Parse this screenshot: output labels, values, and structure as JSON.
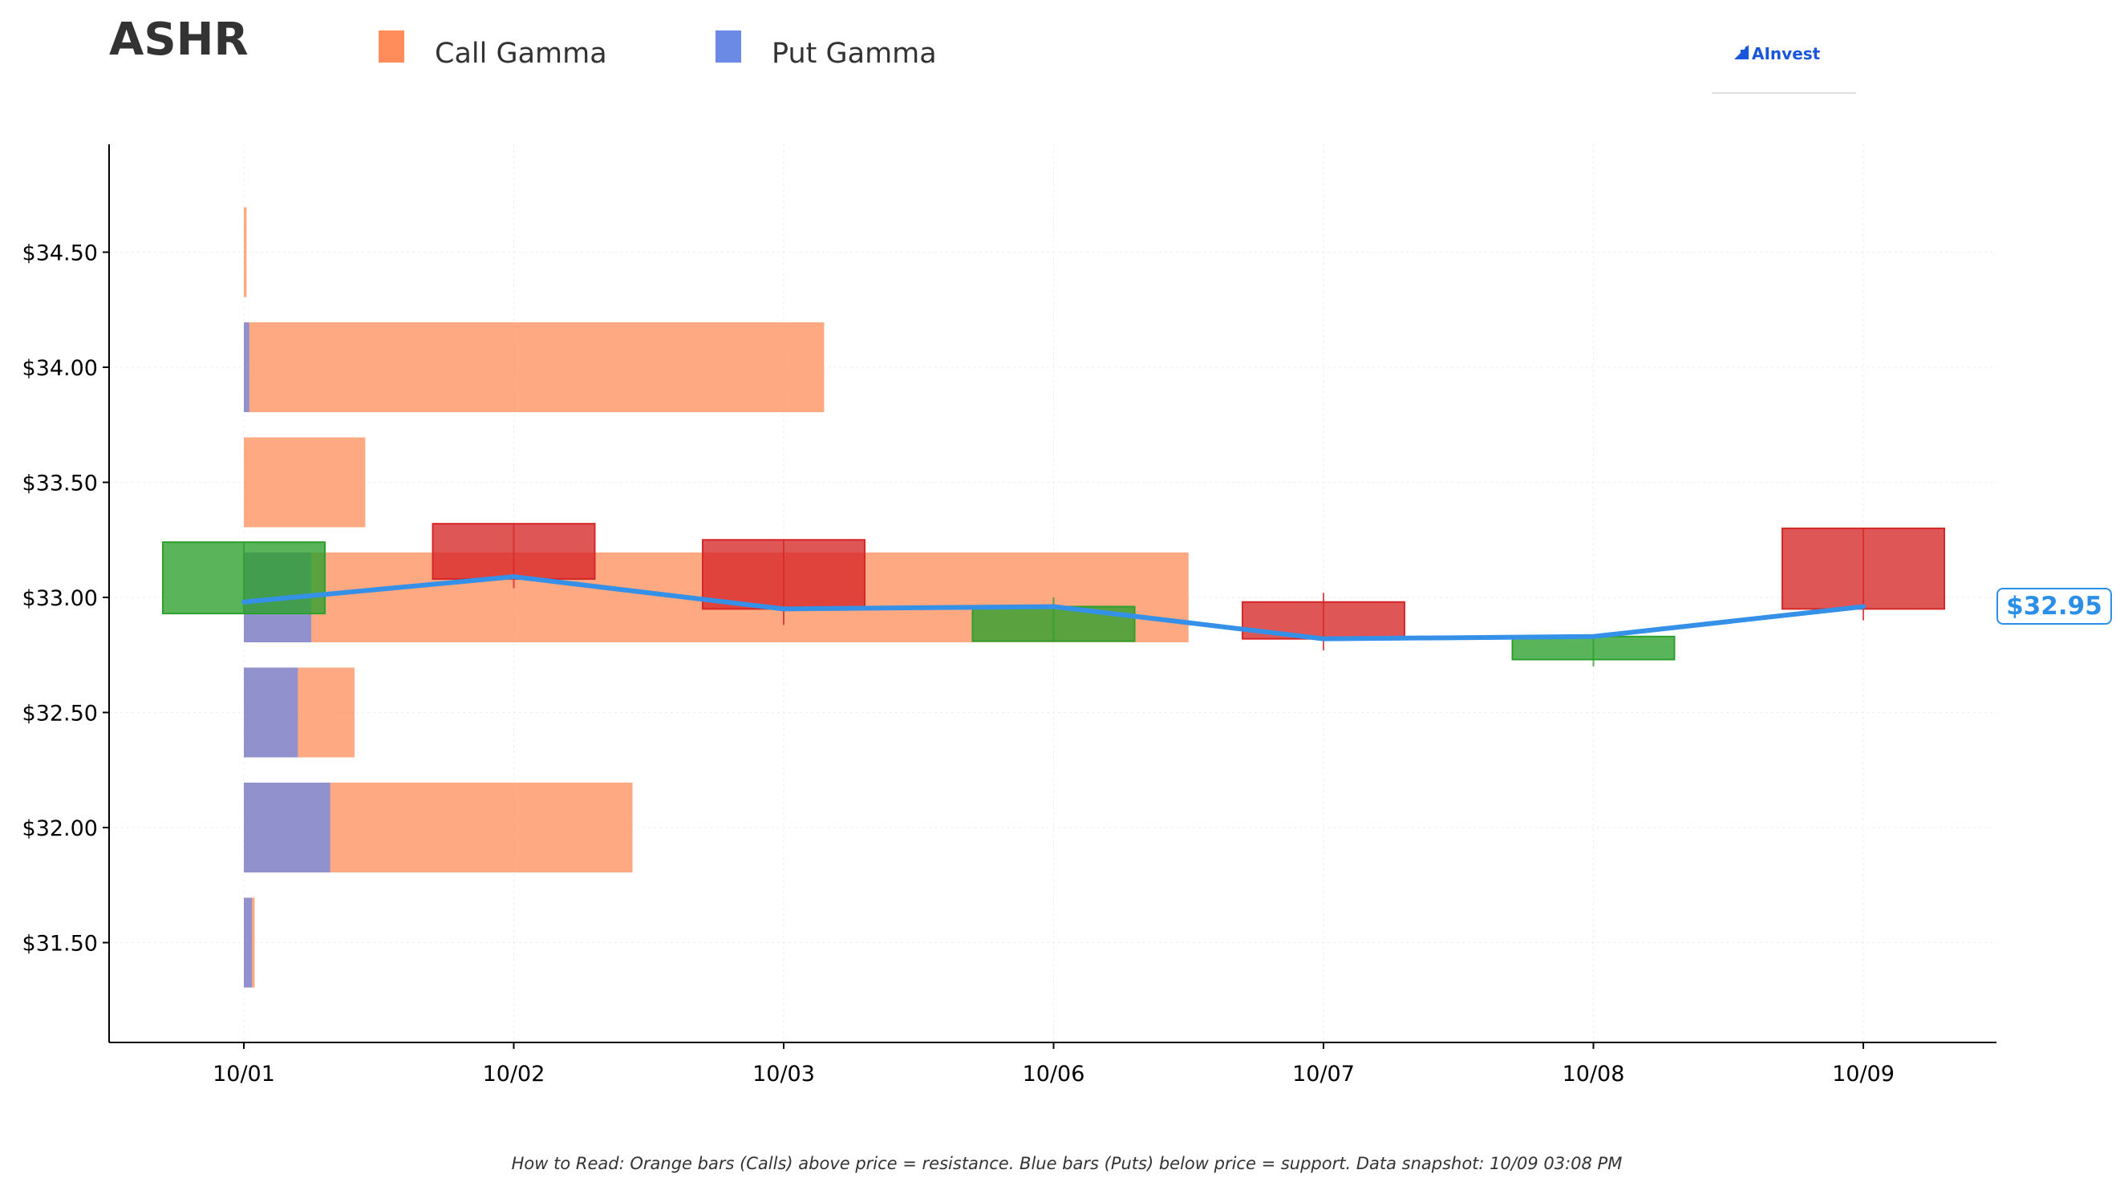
{
  "header": {
    "ticker": "ASHR",
    "logo_text": "AInvest"
  },
  "legend": [
    {
      "label": "Call Gamma",
      "color": "#ff8c5a"
    },
    {
      "label": "Put Gamma",
      "color": "#6b8ae6"
    }
  ],
  "footnote": "How to Read: Orange bars (Calls) above price = resistance. Blue bars (Puts) below price = support. Data snapshot: 10/09 03:08 PM",
  "colors": {
    "call": "#ff8c5a",
    "put": "#6b8ae6",
    "up_candle": "#2ca02c",
    "down_candle": "#d62728",
    "price_line": "#3590e8",
    "price_label": "#2b8fe8"
  },
  "chart_data": {
    "type": "bar",
    "title": "ASHR",
    "x_categories": [
      "10/01",
      "10/02",
      "10/03",
      "10/06",
      "10/07",
      "10/08",
      "10/09"
    ],
    "y_ticks": [
      "$31.50",
      "$32.00",
      "$32.50",
      "$33.00",
      "$33.50",
      "$34.00",
      "$34.50"
    ],
    "y_tick_values": [
      31.5,
      32.0,
      32.5,
      33.0,
      33.5,
      34.0,
      34.5
    ],
    "ylim": [
      31.06,
      34.97
    ],
    "grid": true,
    "legend_position": "top-left",
    "gamma_profile": {
      "strikes": [
        34.5,
        34.0,
        33.5,
        33.0,
        32.5,
        32.0,
        31.5
      ],
      "call_gamma": [
        0.01,
        2.15,
        0.45,
        3.5,
        0.41,
        1.44,
        0.04
      ],
      "put_gamma": [
        0.0,
        0.02,
        0.0,
        0.25,
        0.2,
        0.32,
        0.03
      ],
      "unit_note": "bar length measured in x-category units from 10/01"
    },
    "candles": [
      {
        "date": "10/01",
        "open": 32.93,
        "close": 33.24,
        "high": 33.24,
        "low": 32.93
      },
      {
        "date": "10/02",
        "open": 33.32,
        "close": 33.08,
        "high": 33.32,
        "low": 33.04
      },
      {
        "date": "10/03",
        "open": 33.25,
        "close": 32.95,
        "high": 33.25,
        "low": 32.88
      },
      {
        "date": "10/06",
        "open": 32.81,
        "close": 32.96,
        "high": 33.0,
        "low": 32.81
      },
      {
        "date": "10/07",
        "open": 32.98,
        "close": 32.82,
        "high": 33.02,
        "low": 32.77
      },
      {
        "date": "10/08",
        "open": 32.73,
        "close": 32.83,
        "high": 32.83,
        "low": 32.7
      },
      {
        "date": "10/09",
        "open": 33.3,
        "close": 32.95,
        "high": 33.3,
        "low": 32.9
      }
    ],
    "price_line": {
      "x": [
        "10/01",
        "10/02",
        "10/03",
        "10/06",
        "10/07",
        "10/08",
        "10/09"
      ],
      "y": [
        32.98,
        33.09,
        32.95,
        32.96,
        32.82,
        32.83,
        32.96
      ]
    },
    "current_price_label": "$32.95"
  }
}
